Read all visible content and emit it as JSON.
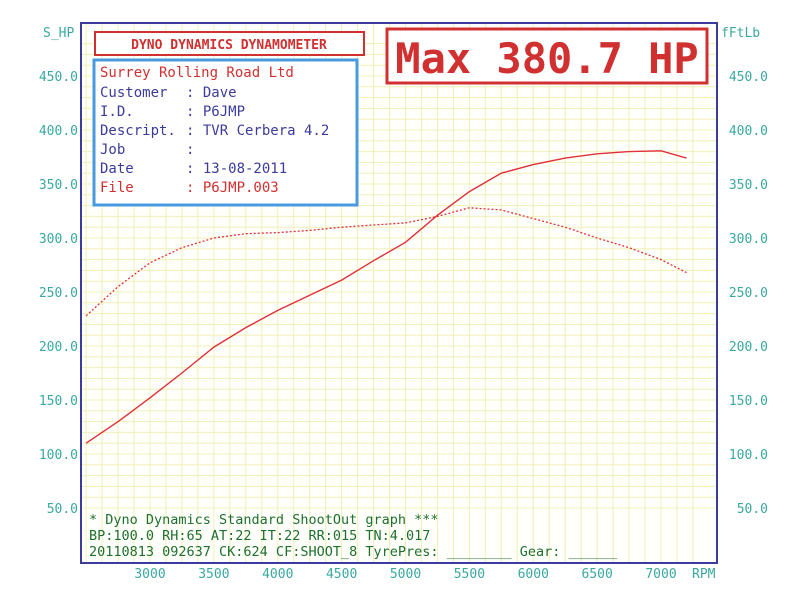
{
  "chart_data": {
    "type": "line",
    "title": "Max 380.7 HP",
    "ylabel_left": "S_HP",
    "ylabel_right": "fFtLb",
    "xlabel": "RPM",
    "xlim": [
      2500,
      7250
    ],
    "ylim": [
      50,
      480
    ],
    "yticks": [
      "50.0",
      "100.0",
      "150.0",
      "200.0",
      "250.0",
      "300.0",
      "350.0",
      "400.0",
      "450.0"
    ],
    "xticks": [
      "3000",
      "3500",
      "4000",
      "4500",
      "5000",
      "5500",
      "6000",
      "6500",
      "7000"
    ],
    "series": [
      {
        "name": "",
        "style": "solid",
        "x": [
          2500,
          2750,
          3000,
          3250,
          3500,
          3750,
          4000,
          4250,
          4500,
          4750,
          5000,
          5250,
          5500,
          5750,
          6000,
          6250,
          6500,
          6750,
          7000,
          7200
        ],
        "y": [
          110,
          130,
          152,
          175,
          199,
          217,
          233,
          247,
          261,
          279,
          296,
          321,
          343,
          360,
          368,
          374,
          378,
          380,
          380.7,
          374
        ]
      },
      {
        "name": "",
        "style": "dotted",
        "x": [
          2500,
          2750,
          3000,
          3250,
          3500,
          3750,
          4000,
          4250,
          4500,
          4750,
          5000,
          5250,
          5500,
          5750,
          6000,
          6250,
          6500,
          6750,
          7000,
          7200
        ],
        "y": [
          228,
          255,
          277,
          291,
          300,
          304,
          305,
          307,
          310,
          312,
          314,
          320,
          328,
          326,
          318,
          310,
          300,
          291,
          280,
          268
        ]
      }
    ]
  },
  "header": {
    "badge": "DYNO DYNAMICS DYNAMOMETER",
    "max_label": "Max 380.7 HP"
  },
  "info": {
    "shop": "Surrey Rolling Road Ltd",
    "rows": [
      {
        "k": "Customer",
        "v": ": Dave"
      },
      {
        "k": "I.D.",
        "v": ": P6JMP"
      },
      {
        "k": "Descript.",
        "v": ": TVR Cerbera 4.2"
      },
      {
        "k": "Job",
        "v": ":"
      },
      {
        "k": "Date",
        "v": ": 13-08-2011"
      },
      {
        "k": "File",
        "v": ": P6JMP.003"
      }
    ]
  },
  "footer": {
    "line1": "* Dyno Dynamics Standard ShootOut graph ***",
    "line2": "BP:100.0 RH:65 AT:22 IT:22  RR:015 TN:4.017",
    "line3": "20110813 092637 CK:624 CF:SHOOT_8  TyrePres: ________ Gear: ______"
  },
  "colors": {
    "grid": "#f1f0b8",
    "frame": "#3b3b9c",
    "curve": "#e0303a",
    "axis_text": "#3aa8a0",
    "info_text": "#3b3b9c",
    "file_text": "#d03030",
    "footer_text": "#1f6f2f",
    "info_border": "#4a9adf"
  }
}
